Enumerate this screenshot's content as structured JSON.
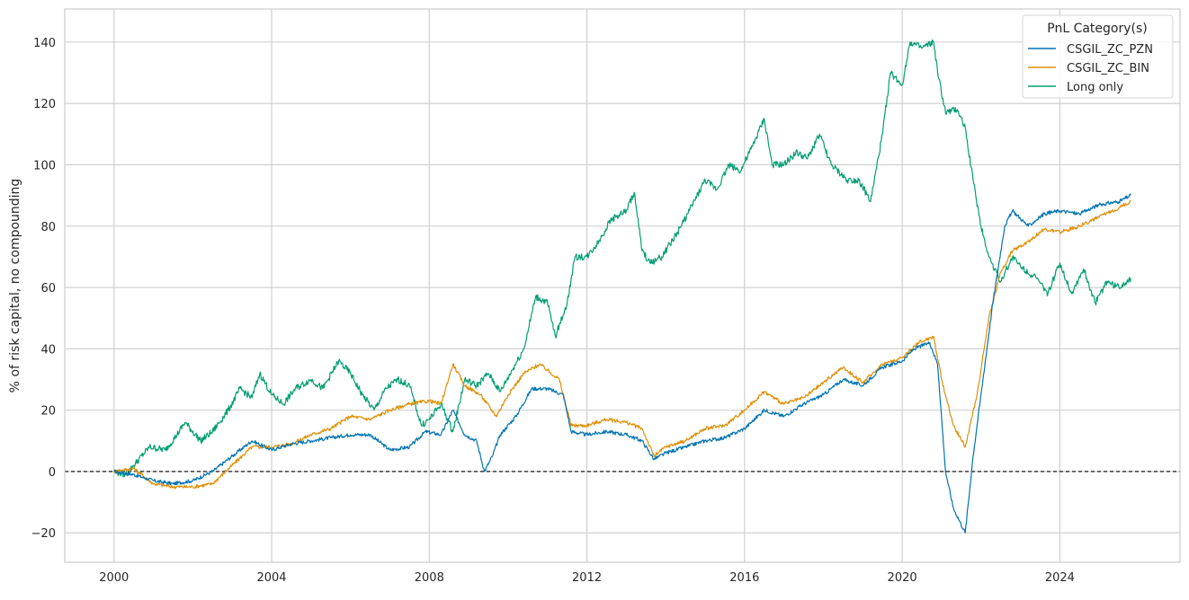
{
  "chart_data": {
    "type": "line",
    "title": "",
    "xlabel": "",
    "ylabel": "% of risk capital, no compounding",
    "xlim": [
      1998.75,
      2027.05
    ],
    "ylim": [
      -29.6,
      150.8
    ],
    "x_ticks": [
      "2000",
      "2004",
      "2008",
      "2012",
      "2016",
      "2020",
      "2024"
    ],
    "y_ticks": [
      "−20",
      "0",
      "20",
      "40",
      "60",
      "80",
      "100",
      "120",
      "140"
    ],
    "grid": true,
    "reference_line": {
      "y": 0,
      "style": "dashed",
      "color": "#000000"
    },
    "legend": {
      "title": "PnL Category(s)",
      "placement": "top-right"
    },
    "series": [
      {
        "name": "CSGIL_ZC_PZN",
        "color": "#0173b2",
        "x": [
          2000,
          2000.5,
          2001,
          2001.5,
          2002,
          2002.5,
          2003,
          2003.5,
          2004,
          2004.5,
          2005,
          2005.5,
          2006,
          2006.5,
          2007,
          2007.5,
          2007.9,
          2008.3,
          2008.6,
          2008.9,
          2009.2,
          2009.4,
          2009.6,
          2009.8,
          2010.2,
          2010.6,
          2011,
          2011.4,
          2011.6,
          2012,
          2012.5,
          2013,
          2013.4,
          2013.7,
          2014,
          2014.5,
          2015,
          2015.5,
          2016,
          2016.5,
          2017,
          2017.5,
          2018,
          2018.5,
          2019,
          2019.5,
          2020,
          2020.3,
          2020.7,
          2020.9,
          2021.1,
          2021.3,
          2021.6,
          2021.8,
          2022,
          2022.3,
          2022.6,
          2022.8,
          2023.2,
          2023.6,
          2024,
          2024.5,
          2025,
          2025.5,
          2025.8
        ],
        "y": [
          0,
          -1,
          -3,
          -4,
          -3,
          0,
          5,
          10,
          7,
          9,
          10,
          11,
          12,
          12,
          7,
          8,
          13,
          12,
          20,
          12,
          10,
          0,
          5,
          12,
          18,
          27,
          27,
          25,
          13,
          12,
          13,
          12,
          10,
          4,
          6,
          8,
          10,
          11,
          14,
          20,
          18,
          22,
          25,
          30,
          28,
          34,
          36,
          40,
          42,
          35,
          0,
          -12,
          -20,
          5,
          25,
          55,
          80,
          85,
          80,
          84,
          85,
          84,
          87,
          88,
          90
        ]
      },
      {
        "name": "CSGIL_ZC_BIN",
        "color": "#de8f05",
        "x": [
          2000,
          2000.5,
          2001,
          2001.5,
          2002,
          2002.5,
          2003,
          2003.5,
          2004,
          2004.5,
          2005,
          2005.5,
          2006,
          2006.5,
          2007,
          2007.5,
          2008,
          2008.3,
          2008.6,
          2008.9,
          2009.3,
          2009.7,
          2010,
          2010.4,
          2010.8,
          2011.3,
          2011.6,
          2012,
          2012.5,
          2013,
          2013.4,
          2013.7,
          2014,
          2014.5,
          2015,
          2015.5,
          2016,
          2016.5,
          2017,
          2017.5,
          2018,
          2018.5,
          2019,
          2019.5,
          2020,
          2020.4,
          2020.8,
          2021,
          2021.3,
          2021.6,
          2021.9,
          2022.2,
          2022.5,
          2022.8,
          2023.2,
          2023.6,
          2024,
          2024.5,
          2025,
          2025.5,
          2025.8
        ],
        "y": [
          0,
          1,
          -4,
          -5,
          -5,
          -4,
          2,
          8,
          8,
          9,
          12,
          14,
          18,
          17,
          20,
          22,
          23,
          22,
          35,
          28,
          25,
          18,
          25,
          32,
          35,
          30,
          15,
          15,
          17,
          16,
          14,
          5,
          8,
          10,
          14,
          15,
          20,
          26,
          22,
          24,
          29,
          34,
          29,
          35,
          37,
          42,
          44,
          30,
          15,
          8,
          25,
          50,
          65,
          72,
          75,
          79,
          78,
          80,
          83,
          86,
          88
        ]
      },
      {
        "name": "Long only",
        "color": "#029e73",
        "x": [
          2000,
          2000.3,
          2000.5,
          2000.9,
          2001.3,
          2001.6,
          2001.8,
          2002.2,
          2002.5,
          2002.9,
          2003.2,
          2003.5,
          2003.7,
          2004,
          2004.3,
          2004.6,
          2005,
          2005.3,
          2005.7,
          2006,
          2006.3,
          2006.6,
          2006.9,
          2007.2,
          2007.5,
          2007.8,
          2008,
          2008.3,
          2008.6,
          2008.9,
          2009.2,
          2009.5,
          2009.8,
          2010.1,
          2010.4,
          2010.7,
          2011,
          2011.2,
          2011.5,
          2011.7,
          2012,
          2012.3,
          2012.6,
          2013,
          2013.2,
          2013.4,
          2013.6,
          2013.9,
          2014.3,
          2014.6,
          2015,
          2015.3,
          2015.6,
          2015.9,
          2016.2,
          2016.5,
          2016.7,
          2017,
          2017.3,
          2017.6,
          2017.9,
          2018.2,
          2018.6,
          2018.9,
          2019.2,
          2019.5,
          2019.7,
          2020,
          2020.2,
          2020.5,
          2020.8,
          2020.9,
          2021.1,
          2021.4,
          2021.6,
          2021.8,
          2022,
          2022.2,
          2022.5,
          2022.8,
          2023,
          2023.4,
          2023.7,
          2024,
          2024.3,
          2024.6,
          2024.9,
          2025.2,
          2025.5,
          2025.8
        ],
        "y": [
          0,
          -1,
          2,
          8,
          7,
          12,
          16,
          10,
          13,
          20,
          27,
          24,
          32,
          25,
          22,
          27,
          30,
          27,
          36,
          32,
          25,
          20,
          27,
          30,
          28,
          15,
          17,
          22,
          13,
          30,
          28,
          32,
          26,
          33,
          40,
          57,
          55,
          44,
          55,
          70,
          70,
          75,
          82,
          85,
          91,
          72,
          68,
          70,
          78,
          85,
          95,
          92,
          100,
          98,
          106,
          115,
          100,
          100,
          104,
          102,
          110,
          100,
          95,
          95,
          88,
          110,
          130,
          126,
          140,
          138,
          140,
          130,
          117,
          118,
          112,
          95,
          80,
          70,
          62,
          70,
          67,
          63,
          58,
          68,
          58,
          66,
          55,
          62,
          60,
          63
        ]
      }
    ]
  }
}
